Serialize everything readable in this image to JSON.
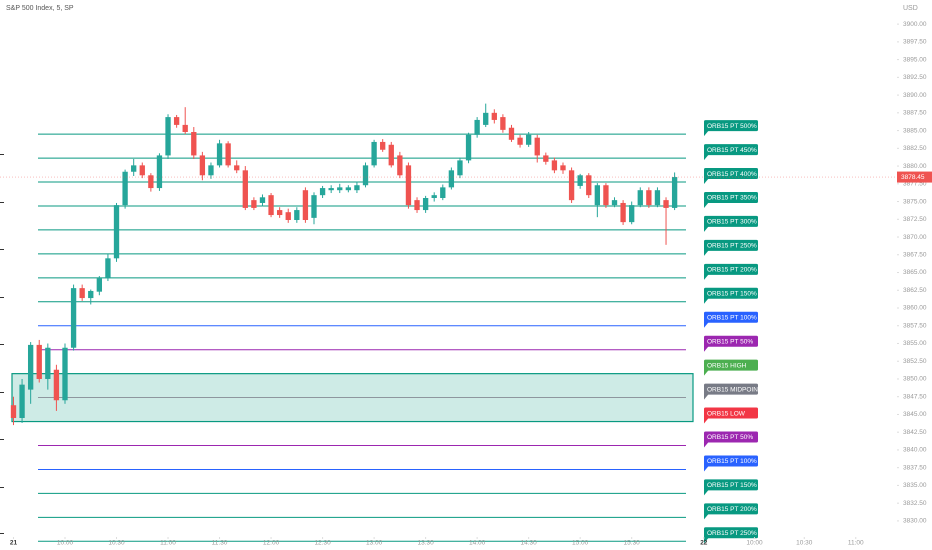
{
  "chart_data": {
    "type": "candlestick",
    "title": "S&P 500 Index, 5, SP",
    "currency": "USD",
    "up_color": "#26a69a",
    "down_color": "#ef5350",
    "xlim": [
      -1.57,
      102.9
    ],
    "ylim": [
      3825.9,
      3903.4
    ],
    "xticks": [
      {
        "value": 0,
        "label": "21"
      },
      {
        "value": 6,
        "label": "10:00"
      },
      {
        "value": 12,
        "label": "10:30"
      },
      {
        "value": 18,
        "label": "11:00"
      },
      {
        "value": 24,
        "label": "11:30"
      },
      {
        "value": 30,
        "label": "12:00"
      },
      {
        "value": 36,
        "label": "12:30"
      },
      {
        "value": 42,
        "label": "13:00"
      },
      {
        "value": 48,
        "label": "13:30"
      },
      {
        "value": 54,
        "label": "14:00"
      },
      {
        "value": 60,
        "label": "14:30"
      },
      {
        "value": 66,
        "label": "15:00"
      },
      {
        "value": 72,
        "label": "15:30"
      },
      {
        "value": 80.4,
        "label": "22"
      },
      {
        "value": 86.3,
        "label": "10:00"
      },
      {
        "value": 92.1,
        "label": "10:30"
      },
      {
        "value": 98.1,
        "label": "11:00"
      }
    ],
    "yticks": [
      {
        "value": 3900,
        "label": "3900.00"
      },
      {
        "value": 3897.5,
        "label": "3897.50"
      },
      {
        "value": 3895,
        "label": "3895.00"
      },
      {
        "value": 3892.5,
        "label": "3892.50"
      },
      {
        "value": 3890,
        "label": "3890.00"
      },
      {
        "value": 3887.5,
        "label": "3887.50"
      },
      {
        "value": 3885,
        "label": "3885.00"
      },
      {
        "value": 3882.5,
        "label": "3882.50"
      },
      {
        "value": 3880,
        "label": "3880.00"
      },
      {
        "value": 3877.5,
        "label": "3877.50"
      },
      {
        "value": 3875,
        "label": "3875.00"
      },
      {
        "value": 3872.5,
        "label": "3872.50"
      },
      {
        "value": 3870,
        "label": "3870.00"
      },
      {
        "value": 3867.5,
        "label": "3867.50"
      },
      {
        "value": 3865,
        "label": "3865.00"
      },
      {
        "value": 3862.5,
        "label": "3862.50"
      },
      {
        "value": 3860,
        "label": "3860.00"
      },
      {
        "value": 3857.5,
        "label": "3857.50"
      },
      {
        "value": 3855,
        "label": "3855.00"
      },
      {
        "value": 3852.5,
        "label": "3852.50"
      },
      {
        "value": 3850,
        "label": "3850.00"
      },
      {
        "value": 3847.5,
        "label": "3847.50"
      },
      {
        "value": 3845,
        "label": "3845.00"
      },
      {
        "value": 3842.5,
        "label": "3842.50"
      },
      {
        "value": 3840,
        "label": "3840.00"
      },
      {
        "value": 3837.5,
        "label": "3837.50"
      },
      {
        "value": 3835,
        "label": "3835.00"
      },
      {
        "value": 3832.5,
        "label": "3832.50"
      },
      {
        "value": 3830,
        "label": "3830.00"
      }
    ],
    "last_price": 3878.45,
    "orb_box": {
      "high": 3850.75,
      "low": 3844.0,
      "color": "#089981"
    },
    "levels": [
      {
        "label": "ORB15 PT 500%",
        "value": 3884.5,
        "color": "#089981"
      },
      {
        "label": "ORB15 PT 450%",
        "value": 3881.125,
        "color": "#089981"
      },
      {
        "label": "ORB15 PT 400%",
        "value": 3877.75,
        "color": "#089981"
      },
      {
        "label": "ORB15 PT 350%",
        "value": 3874.375,
        "color": "#089981"
      },
      {
        "label": "ORB15 PT 300%",
        "value": 3871,
        "color": "#089981"
      },
      {
        "label": "ORB15 PT 250%",
        "value": 3867.625,
        "color": "#089981"
      },
      {
        "label": "ORB15 PT 200%",
        "value": 3864.25,
        "color": "#089981"
      },
      {
        "label": "ORB15 PT 150%",
        "value": 3860.875,
        "color": "#089981"
      },
      {
        "label": "ORB15 PT 100%",
        "value": 3857.5,
        "color": "#2962ff"
      },
      {
        "label": "ORB15 PT 50%",
        "value": 3854.125,
        "color": "#9c27b0"
      },
      {
        "label": "ORB15 HIGH",
        "value": 3850.75,
        "color": "#4caf50"
      },
      {
        "label": "ORB15 MIDPOINT",
        "value": 3847.375,
        "color": "#787b86"
      },
      {
        "label": "ORB15 LOW",
        "value": 3844.0,
        "color": "#f23645"
      },
      {
        "label": "ORB15 PT 50%",
        "value": 3840.625,
        "color": "#9c27b0"
      },
      {
        "label": "ORB15 PT 100%",
        "value": 3837.25,
        "color": "#2962ff"
      },
      {
        "label": "ORB15 PT 150%",
        "value": 3833.875,
        "color": "#089981"
      },
      {
        "label": "ORB15 PT 200%",
        "value": 3830.5,
        "color": "#089981"
      },
      {
        "label": "ORB15 PT 250%",
        "value": 3827.125,
        "color": "#089981"
      }
    ],
    "ohlc": [
      [
        3846.3,
        3847.5,
        3843.5,
        3844.5
      ],
      [
        3844.5,
        3850,
        3843.8,
        3849.2
      ],
      [
        3848.5,
        3855.2,
        3846.5,
        3854.8
      ],
      [
        3854.8,
        3855.5,
        3849.5,
        3850
      ],
      [
        3850,
        3855,
        3848.5,
        3854.4
      ],
      [
        3851.3,
        3852,
        3845.5,
        3847
      ],
      [
        3847,
        3855,
        3846.5,
        3854.4
      ],
      [
        3854.4,
        3863.3,
        3854,
        3862.8
      ],
      [
        3862.8,
        3863.3,
        3861,
        3861.4
      ],
      [
        3861.4,
        3862.6,
        3860.5,
        3862.4
      ],
      [
        3862.3,
        3864.5,
        3861.8,
        3864.2
      ],
      [
        3864.2,
        3867.6,
        3863.8,
        3867
      ],
      [
        3867,
        3874.8,
        3866.5,
        3874.5
      ],
      [
        3874.5,
        3879.5,
        3874,
        3879.2
      ],
      [
        3879.2,
        3881,
        3878.6,
        3880.1
      ],
      [
        3880.1,
        3880.5,
        3878.3,
        3878.7
      ],
      [
        3878.7,
        3879,
        3876.4,
        3876.9
      ],
      [
        3876.9,
        3881.8,
        3876.5,
        3881.5
      ],
      [
        3881.5,
        3887.3,
        3881,
        3886.9
      ],
      [
        3886.9,
        3887.2,
        3885.4,
        3885.8
      ],
      [
        3885.8,
        3888.3,
        3884.5,
        3884.8
      ],
      [
        3884.8,
        3885.5,
        3881,
        3881.5
      ],
      [
        3881.5,
        3882,
        3878,
        3878.7
      ],
      [
        3878.7,
        3880.5,
        3878.2,
        3880.1
      ],
      [
        3880.1,
        3883.7,
        3879.8,
        3883.2
      ],
      [
        3883.2,
        3883.5,
        3879.8,
        3880.1
      ],
      [
        3880.1,
        3880.8,
        3879,
        3879.4
      ],
      [
        3879.4,
        3880,
        3873.8,
        3874.1
      ],
      [
        3875.2,
        3875.6,
        3873.8,
        3874.1
      ],
      [
        3874.8,
        3876,
        3874.3,
        3875.6
      ],
      [
        3875.9,
        3876.2,
        3872.8,
        3873.1
      ],
      [
        3873.8,
        3874.2,
        3872.7,
        3873.1
      ],
      [
        3873.5,
        3874,
        3872,
        3872.4
      ],
      [
        3872.4,
        3874.2,
        3872,
        3873.8
      ],
      [
        3876.6,
        3877,
        3872,
        3872.4
      ],
      [
        3872.7,
        3876.3,
        3871.8,
        3875.9
      ],
      [
        3875.9,
        3877.2,
        3875.5,
        3876.9
      ],
      [
        3876.6,
        3877.3,
        3876.2,
        3876.9
      ],
      [
        3876.6,
        3877.5,
        3876.2,
        3877
      ],
      [
        3876.6,
        3877.3,
        3876.3,
        3877
      ],
      [
        3876.6,
        3877.8,
        3876.2,
        3877.3
      ],
      [
        3877.3,
        3880.5,
        3877,
        3880.1
      ],
      [
        3880.1,
        3883.7,
        3879.8,
        3883.4
      ],
      [
        3883.4,
        3883.8,
        3882,
        3882.3
      ],
      [
        3883,
        3883.4,
        3879.8,
        3880.1
      ],
      [
        3881.5,
        3882,
        3878.3,
        3878.7
      ],
      [
        3880.1,
        3880.5,
        3874,
        3874.5
      ],
      [
        3875.2,
        3875.6,
        3873.4,
        3873.8
      ],
      [
        3873.8,
        3875.8,
        3873.4,
        3875.5
      ],
      [
        3875.5,
        3876.3,
        3875,
        3875.9
      ],
      [
        3875.5,
        3877.4,
        3875.2,
        3877
      ],
      [
        3877,
        3879.8,
        3876.7,
        3879.4
      ],
      [
        3878.7,
        3881.2,
        3878.3,
        3880.8
      ],
      [
        3880.8,
        3884.7,
        3880.4,
        3884.4
      ],
      [
        3884.4,
        3886.9,
        3884,
        3886.5
      ],
      [
        3885.8,
        3888.8,
        3885.5,
        3887.5
      ],
      [
        3887.5,
        3888,
        3886,
        3886.5
      ],
      [
        3886.9,
        3887.3,
        3884.7,
        3885.1
      ],
      [
        3885.4,
        3885.8,
        3883.4,
        3883.7
      ],
      [
        3884,
        3884.4,
        3882.6,
        3883
      ],
      [
        3883,
        3884.8,
        3882.7,
        3884.4
      ],
      [
        3884,
        3884.4,
        3880.5,
        3881.5
      ],
      [
        3881.5,
        3881.9,
        3880.2,
        3880.6
      ],
      [
        3880.8,
        3881.2,
        3879,
        3879.4
      ],
      [
        3880.1,
        3880.5,
        3878.9,
        3879.4
      ],
      [
        3879.4,
        3879.8,
        3874.8,
        3875.2
      ],
      [
        3877.2,
        3878.9,
        3876.8,
        3878.7
      ],
      [
        3878.7,
        3879,
        3875.5,
        3875.9
      ],
      [
        3874.5,
        3877.6,
        3872.8,
        3877.3
      ],
      [
        3877.3,
        3877.6,
        3874.1,
        3874.5
      ],
      [
        3874.5,
        3875.6,
        3874.2,
        3875.2
      ],
      [
        3874.8,
        3875.2,
        3871.7,
        3872.1
      ],
      [
        3872.1,
        3875,
        3871.8,
        3874.5
      ],
      [
        3874.5,
        3877,
        3874.2,
        3876.6
      ],
      [
        3876.6,
        3877,
        3874.1,
        3874.5
      ],
      [
        3874.5,
        3877,
        3874.2,
        3876.6
      ],
      [
        3875.2,
        3875.6,
        3868.9,
        3874.1
      ],
      [
        3874.1,
        3879.1,
        3873.8,
        3878.45
      ]
    ]
  }
}
